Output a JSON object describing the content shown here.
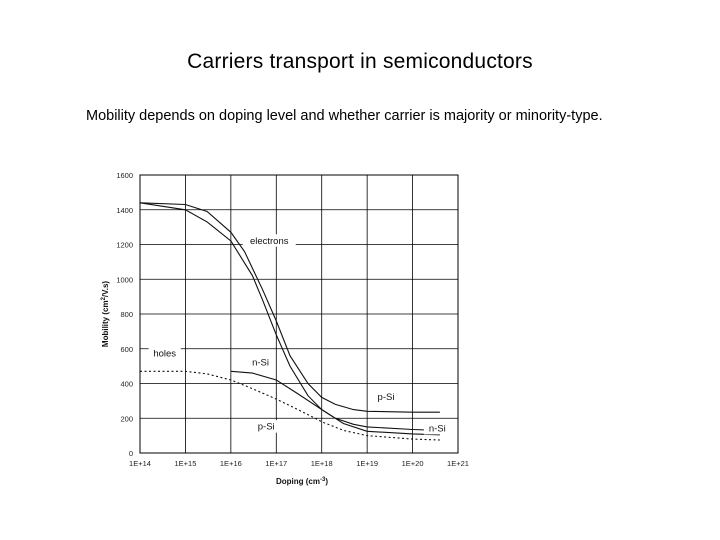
{
  "slide": {
    "title": "Carriers transport in semiconductors",
    "body": "Mobility depends on doping level and whether carrier is majority or minority-type."
  },
  "chart_data": {
    "type": "line",
    "title": "",
    "xlabel": "Doping",
    "xlabel_unit": "(cm",
    "xlabel_exp": "-3",
    "xlabel_close": ")",
    "ylabel": "Mobility (cm",
    "ylabel_exp": "2",
    "ylabel_tail": "/V.s)",
    "x_scale": "log",
    "xlim": [
      100000000000000.0,
      1e+21
    ],
    "ylim": [
      0,
      1600
    ],
    "grid": true,
    "x_ticks": [
      {
        "value": 100000000000000.0,
        "label": "1E+14"
      },
      {
        "value": 1000000000000000.0,
        "label": "1E+15"
      },
      {
        "value": 1e+16,
        "label": "1E+16"
      },
      {
        "value": 1e+17,
        "label": "1E+17"
      },
      {
        "value": 1e+18,
        "label": "1E+18"
      },
      {
        "value": 1e+19,
        "label": "1E+19"
      },
      {
        "value": 1e+20,
        "label": "1E+20"
      },
      {
        "value": 1e+21,
        "label": "1E+21"
      }
    ],
    "y_ticks": [
      {
        "value": 0,
        "label": "0"
      },
      {
        "value": 200,
        "label": "200"
      },
      {
        "value": 400,
        "label": "400"
      },
      {
        "value": 600,
        "label": "600"
      },
      {
        "value": 800,
        "label": "800"
      },
      {
        "value": 1000,
        "label": "1000"
      },
      {
        "value": 1200,
        "label": "1200"
      },
      {
        "value": 1400,
        "label": "1400"
      },
      {
        "value": 1600,
        "label": "1600"
      }
    ],
    "annotations": [
      {
        "text": "electrons",
        "x": 7e+16,
        "y": 1210,
        "anchor": "middle"
      },
      {
        "text": "holes",
        "x": 350000000000000.0,
        "y": 560,
        "anchor": "middle"
      },
      {
        "text": "n-Si",
        "x": 4.5e+16,
        "y": 510,
        "anchor": "middle"
      },
      {
        "text": "p-Si",
        "x": 2.6e+19,
        "y": 310,
        "anchor": "middle"
      },
      {
        "text": "p-Si",
        "x": 6e+16,
        "y": 140,
        "anchor": "middle"
      },
      {
        "text": "n-Si",
        "x": 3.5e+20,
        "y": 130,
        "anchor": "middle"
      }
    ],
    "series": [
      {
        "group": "electrons",
        "dash": "solid",
        "x": [
          100000000000000.0,
          1000000000000000.0,
          3000000000000000.0,
          1e+16,
          2e+16,
          5e+16,
          1e+17,
          2e+17,
          5e+17,
          1e+18,
          2e+18,
          5e+18,
          1e+19,
          1e+20,
          4e+20
        ],
        "y": [
          1440,
          1430,
          1390,
          1270,
          1160,
          940,
          760,
          560,
          400,
          320,
          280,
          250,
          240,
          235,
          235
        ]
      },
      {
        "group": "electrons",
        "dash": "solid",
        "x": [
          100000000000000.0,
          1000000000000000.0,
          3000000000000000.0,
          1e+16,
          3e+16,
          5e+16,
          1e+17,
          2e+17,
          5e+17,
          1e+18,
          2e+18,
          5e+18,
          1e+19,
          1e+20,
          4e+20
        ],
        "y": [
          1440,
          1400,
          1330,
          1220,
          1020,
          880,
          680,
          500,
          330,
          250,
          200,
          165,
          150,
          135,
          130
        ]
      },
      {
        "group": "holes",
        "dash": "solid",
        "x": [
          1e+16,
          3e+16,
          1e+17,
          3e+17,
          1e+18,
          3e+18,
          1e+19,
          1e+20,
          4e+20
        ],
        "y": [
          470,
          460,
          420,
          340,
          250,
          170,
          125,
          110,
          105
        ]
      },
      {
        "group": "holes",
        "dash": "dotted",
        "x": [
          100000000000000.0,
          1000000000000000.0,
          3000000000000000.0,
          1e+16,
          3e+16,
          1e+17,
          3e+17,
          1e+18,
          3e+18,
          1e+19,
          1e+20,
          4e+20
        ],
        "y": [
          470,
          470,
          455,
          420,
          370,
          310,
          250,
          180,
          130,
          100,
          80,
          75
        ]
      }
    ]
  }
}
